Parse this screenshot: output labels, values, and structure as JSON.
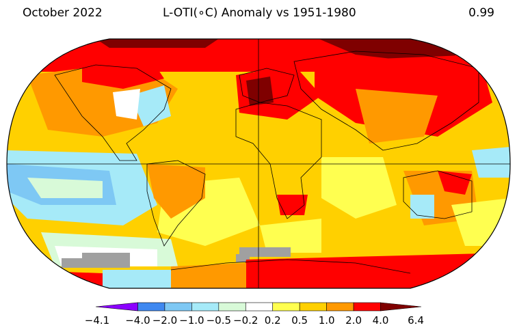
{
  "header": {
    "date_label": "October 2022",
    "title": "L-OTI(∘C) Anomaly vs 1951-1980",
    "global_mean": "0.99"
  },
  "colorbar": {
    "ticks": [
      "−4.1",
      "−4.0",
      "−2.0",
      "−1.0",
      "−0.5",
      "−0.2",
      "0.2",
      "0.5",
      "1.0",
      "2.0",
      "4.0",
      "6.4"
    ],
    "colors": [
      "#8b00ff",
      "#3f88f0",
      "#7ec8f4",
      "#a6eaf8",
      "#d8fad8",
      "#ffffff",
      "#ffff50",
      "#ffd000",
      "#ff9900",
      "#ff0000",
      "#7f0000"
    ]
  },
  "map": {
    "projection": "Robinson",
    "missing_color": "#a0a0a0"
  }
}
